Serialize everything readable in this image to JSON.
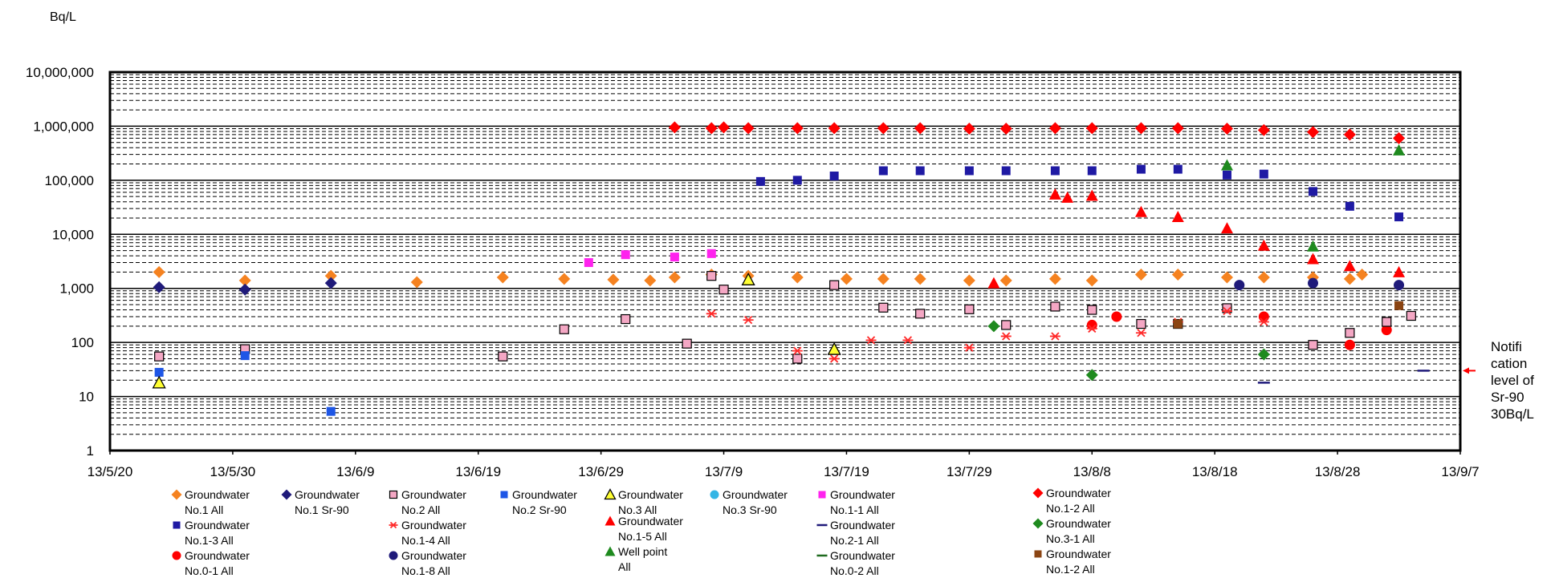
{
  "chart_data": {
    "type": "scatter",
    "ylabel": "Bq/L",
    "y_scale": "log",
    "ylim": [
      1,
      10000000
    ],
    "y_tick_labels": [
      "1",
      "10",
      "100",
      "1,000",
      "10,000",
      "100,000",
      "1,000,000",
      "10,000,000"
    ],
    "y_tick_values": [
      1,
      10,
      100,
      1000,
      10000,
      100000,
      1000000,
      10000000
    ],
    "xlim": [
      "2013-05-20",
      "2013-09-07"
    ],
    "x_tick_labels": [
      "13/5/20",
      "13/5/30",
      "13/6/9",
      "13/6/19",
      "13/6/29",
      "13/7/9",
      "13/7/19",
      "13/7/29",
      "13/8/8",
      "13/8/18",
      "13/8/28",
      "13/9/7"
    ],
    "x_tick_values": [
      "2013-05-20",
      "2013-05-30",
      "2013-06-09",
      "2013-06-19",
      "2013-06-29",
      "2013-07-09",
      "2013-07-19",
      "2013-07-29",
      "2013-08-08",
      "2013-08-18",
      "2013-08-28",
      "2013-09-07"
    ],
    "grid": true,
    "annotation": {
      "text": "Notifi cation level of Sr-90 30Bq/L",
      "lines": [
        "Notifi",
        "cation",
        "level of",
        "Sr-90",
        "30Bq/L"
      ],
      "value": 30
    },
    "legend_position": "bottom",
    "series": [
      {
        "name": "Groundwater No.1 All",
        "label_lines": [
          "Groundwater",
          "No.1 All"
        ],
        "marker": "diamond",
        "color": "#F58220",
        "points": [
          [
            "2013-05-24",
            2000
          ],
          [
            "2013-05-31",
            1400
          ],
          [
            "2013-06-07",
            1700
          ],
          [
            "2013-06-14",
            1300
          ],
          [
            "2013-06-21",
            1600
          ],
          [
            "2013-06-26",
            1500
          ],
          [
            "2013-06-30",
            1450
          ],
          [
            "2013-07-03",
            1400
          ],
          [
            "2013-07-05",
            1600
          ],
          [
            "2013-07-08",
            1800
          ],
          [
            "2013-07-11",
            1700
          ],
          [
            "2013-07-15",
            1600
          ],
          [
            "2013-07-19",
            1500
          ],
          [
            "2013-07-22",
            1500
          ],
          [
            "2013-07-25",
            1500
          ],
          [
            "2013-07-29",
            1400
          ],
          [
            "2013-08-01",
            1400
          ],
          [
            "2013-08-05",
            1500
          ],
          [
            "2013-08-08",
            1400
          ],
          [
            "2013-08-12",
            1800
          ],
          [
            "2013-08-15",
            1800
          ],
          [
            "2013-08-19",
            1600
          ],
          [
            "2013-08-22",
            1600
          ],
          [
            "2013-08-26",
            1600
          ],
          [
            "2013-08-29",
            1500
          ],
          [
            "2013-08-30",
            1800
          ]
        ]
      },
      {
        "name": "Groundwater No.1-3 All",
        "label_lines": [
          "Groundwater",
          "No.1-3 All"
        ],
        "marker": "square",
        "color": "#1F1AA4",
        "points": [
          [
            "2013-07-12",
            95000
          ],
          [
            "2013-07-15",
            100000
          ],
          [
            "2013-07-18",
            120000
          ],
          [
            "2013-07-22",
            150000
          ],
          [
            "2013-07-25",
            150000
          ],
          [
            "2013-07-29",
            150000
          ],
          [
            "2013-08-01",
            150000
          ],
          [
            "2013-08-05",
            150000
          ],
          [
            "2013-08-08",
            150000
          ],
          [
            "2013-08-12",
            160000
          ],
          [
            "2013-08-15",
            160000
          ],
          [
            "2013-08-19",
            125000
          ],
          [
            "2013-08-22",
            130000
          ],
          [
            "2013-08-26",
            62000
          ],
          [
            "2013-08-29",
            33000
          ],
          [
            "2013-09-02",
            21000
          ]
        ]
      },
      {
        "name": "Groundwater No.0-1 All",
        "label_lines": [
          "Groundwater",
          "No.0-1 All"
        ],
        "marker": "circle",
        "color": "#FF0000",
        "points": [
          [
            "2013-08-08",
            210
          ],
          [
            "2013-08-10",
            300
          ],
          [
            "2013-08-22",
            300
          ],
          [
            "2013-08-29",
            90
          ],
          [
            "2013-09-01",
            170
          ]
        ]
      },
      {
        "name": "Groundwater No.1 Sr-90",
        "label_lines": [
          "Groundwater",
          "No.1 Sr-90"
        ],
        "marker": "diamond",
        "color": "#1F1A7A",
        "points": [
          [
            "2013-05-24",
            1050
          ],
          [
            "2013-05-31",
            950
          ],
          [
            "2013-06-07",
            1250
          ]
        ]
      },
      {
        "name": "Groundwater No.2 All",
        "label_lines": [
          "Groundwater",
          "No.2 All"
        ],
        "marker": "square-open",
        "color": "#F4A7C4",
        "points": [
          [
            "2013-05-24",
            55
          ],
          [
            "2013-05-31",
            75
          ],
          [
            "2013-06-21",
            55
          ],
          [
            "2013-06-26",
            175
          ],
          [
            "2013-07-01",
            270
          ],
          [
            "2013-07-06",
            95
          ],
          [
            "2013-07-08",
            1700
          ],
          [
            "2013-07-09",
            950
          ],
          [
            "2013-07-15",
            50
          ],
          [
            "2013-07-18",
            1150
          ],
          [
            "2013-07-22",
            440
          ],
          [
            "2013-07-25",
            340
          ],
          [
            "2013-07-29",
            410
          ],
          [
            "2013-08-01",
            210
          ],
          [
            "2013-08-05",
            460
          ],
          [
            "2013-08-08",
            400
          ],
          [
            "2013-08-12",
            220
          ],
          [
            "2013-08-15",
            220
          ],
          [
            "2013-08-19",
            430
          ],
          [
            "2013-08-26",
            90
          ],
          [
            "2013-08-29",
            150
          ],
          [
            "2013-09-01",
            240
          ],
          [
            "2013-09-03",
            310
          ]
        ]
      },
      {
        "name": "Groundwater No.1-4 All",
        "label_lines": [
          "Groundwater",
          "No.1-4 All"
        ],
        "marker": "star",
        "color": "#FF2A2A",
        "points": [
          [
            "2013-07-08",
            340
          ],
          [
            "2013-07-11",
            260
          ],
          [
            "2013-07-15",
            70
          ],
          [
            "2013-07-18",
            50
          ],
          [
            "2013-07-21",
            110
          ],
          [
            "2013-07-24",
            110
          ],
          [
            "2013-07-29",
            80
          ],
          [
            "2013-08-01",
            130
          ],
          [
            "2013-08-05",
            130
          ],
          [
            "2013-08-08",
            180
          ],
          [
            "2013-08-12",
            150
          ],
          [
            "2013-08-15",
            240
          ],
          [
            "2013-08-19",
            380
          ],
          [
            "2013-08-22",
            240
          ]
        ]
      },
      {
        "name": "Groundwater No.1-8 All",
        "label_lines": [
          "Groundwater",
          "No.1-8 All"
        ],
        "marker": "circle",
        "color": "#1F1A7A",
        "points": [
          [
            "2013-08-20",
            1150
          ],
          [
            "2013-08-26",
            1250
          ],
          [
            "2013-09-02",
            1150
          ]
        ]
      },
      {
        "name": "Groundwater No.2 Sr-90",
        "label_lines": [
          "Groundwater",
          "No.2 Sr-90"
        ],
        "marker": "square",
        "color": "#1E56E6",
        "points": [
          [
            "2013-05-24",
            28
          ],
          [
            "2013-05-31",
            57
          ],
          [
            "2013-06-07",
            5.3
          ]
        ]
      },
      {
        "name": "Groundwater No.3 All",
        "label_lines": [
          "Groundwater",
          "No.3 All"
        ],
        "marker": "triangle-open",
        "color": "#FFFF33",
        "points": [
          [
            "2013-05-24",
            18
          ],
          [
            "2013-07-11",
            1450
          ],
          [
            "2013-07-18",
            75
          ]
        ]
      },
      {
        "name": "Groundwater No.1-5 All",
        "label_lines": [
          "Groundwater",
          "No.1-5 All"
        ],
        "marker": "triangle",
        "color": "#FF0000",
        "points": [
          [
            "2013-07-31",
            1250
          ],
          [
            "2013-08-05",
            55000
          ],
          [
            "2013-08-06",
            48000
          ],
          [
            "2013-08-08",
            52000
          ],
          [
            "2013-08-12",
            26000
          ],
          [
            "2013-08-15",
            21000
          ],
          [
            "2013-08-19",
            13000
          ],
          [
            "2013-08-22",
            6200
          ],
          [
            "2013-08-26",
            3500
          ],
          [
            "2013-08-29",
            2600
          ],
          [
            "2013-09-02",
            2000
          ]
        ]
      },
      {
        "name": "Well point All",
        "label_lines": [
          "Well point",
          "All"
        ],
        "marker": "triangle",
        "color": "#1E8A1E",
        "points": [
          [
            "2013-08-19",
            190000
          ],
          [
            "2013-08-26",
            6000
          ],
          [
            "2013-09-02",
            360000
          ]
        ]
      },
      {
        "name": "Groundwater No.3 Sr-90",
        "label_lines": [
          "Groundwater",
          "No.3 Sr-90"
        ],
        "marker": "circle",
        "color": "#33B5E5",
        "points": []
      },
      {
        "name": "Groundwater No.1-1 All",
        "label_lines": [
          "Groundwater",
          "No.1-1 All"
        ],
        "marker": "square",
        "color": "#FF22EE",
        "points": [
          [
            "2013-06-28",
            3000
          ],
          [
            "2013-07-01",
            4200
          ],
          [
            "2013-07-05",
            3800
          ],
          [
            "2013-07-08",
            4400
          ]
        ]
      },
      {
        "name": "Groundwater No.2-1 All",
        "label_lines": [
          "Groundwater",
          "No.2-1 All"
        ],
        "marker": "dash",
        "color": "#1F1A7A",
        "points": [
          [
            "2013-08-22",
            18
          ],
          [
            "2013-09-04",
            30
          ]
        ]
      },
      {
        "name": "Groundwater No.0-2 All",
        "label_lines": [
          "Groundwater",
          "No.0-2 All"
        ],
        "marker": "dash",
        "color": "#1E6A1E",
        "points": []
      },
      {
        "name": "Groundwater No.1-2 All",
        "label_lines": [
          "Groundwater",
          "No.1-2 All"
        ],
        "marker": "diamond",
        "color": "#FF0000",
        "points": [
          [
            "2013-07-05",
            950000
          ],
          [
            "2013-07-08",
            920000
          ],
          [
            "2013-07-09",
            950000
          ],
          [
            "2013-07-11",
            920000
          ],
          [
            "2013-07-15",
            920000
          ],
          [
            "2013-07-18",
            920000
          ],
          [
            "2013-07-22",
            920000
          ],
          [
            "2013-07-25",
            920000
          ],
          [
            "2013-07-29",
            900000
          ],
          [
            "2013-08-01",
            900000
          ],
          [
            "2013-08-05",
            920000
          ],
          [
            "2013-08-08",
            920000
          ],
          [
            "2013-08-12",
            920000
          ],
          [
            "2013-08-15",
            920000
          ],
          [
            "2013-08-19",
            900000
          ],
          [
            "2013-08-22",
            850000
          ],
          [
            "2013-08-26",
            780000
          ],
          [
            "2013-08-29",
            700000
          ],
          [
            "2013-09-02",
            600000
          ]
        ]
      },
      {
        "name": "Groundwater No.3-1 All",
        "label_lines": [
          "Groundwater",
          "No.3-1 All"
        ],
        "marker": "diamond",
        "color": "#1E8A1E",
        "points": [
          [
            "2013-07-31",
            200
          ],
          [
            "2013-08-08",
            25
          ],
          [
            "2013-08-22",
            60
          ]
        ]
      },
      {
        "name": "Groundwater No.1-2 All",
        "label_lines": [
          "Groundwater",
          "No.1-2 All"
        ],
        "marker": "square",
        "color": "#8B4513",
        "points": [
          [
            "2013-08-15",
            220
          ],
          [
            "2013-09-02",
            480
          ]
        ]
      }
    ]
  }
}
